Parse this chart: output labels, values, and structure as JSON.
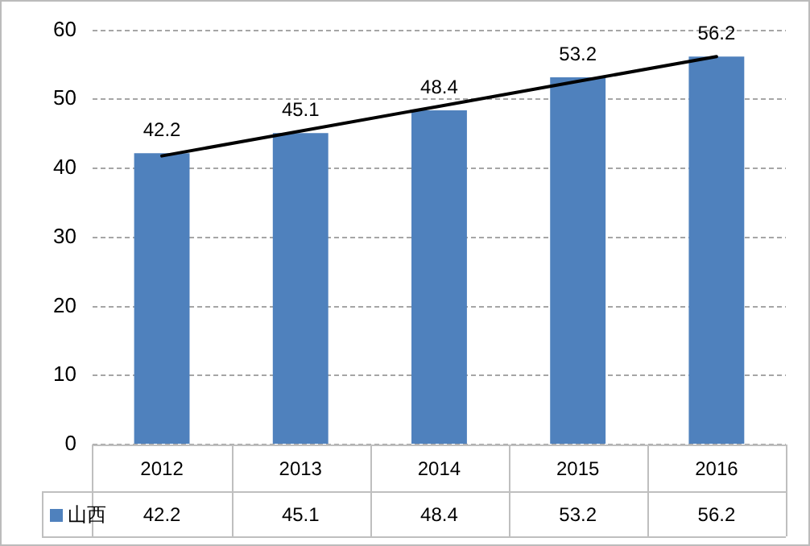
{
  "chart_data": {
    "type": "bar",
    "categories": [
      "2012",
      "2013",
      "2014",
      "2015",
      "2016"
    ],
    "series": [
      {
        "name": "山西",
        "color": "#4f81bd",
        "values": [
          42.2,
          45.1,
          48.4,
          53.2,
          56.2
        ],
        "value_labels": [
          "42.2",
          "45.1",
          "48.4",
          "53.2",
          "56.2"
        ]
      },
      {
        "type": "line",
        "color": "#000000",
        "values": [
          41.8,
          45.4,
          49.0,
          52.6,
          56.2
        ],
        "marker": "none"
      }
    ],
    "ylim": [
      0,
      60
    ],
    "yticks": [
      0,
      10,
      20,
      30,
      40,
      50,
      60
    ],
    "grid": "y",
    "legend": "bottom"
  }
}
